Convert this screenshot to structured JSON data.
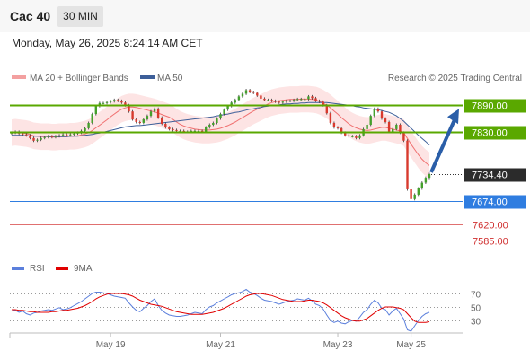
{
  "header": {
    "title": "Cac 40",
    "timeframe": "30 MIN",
    "datetime": "Monday, May 26, 2025 8:24:14 AM CET"
  },
  "legend": {
    "bb": "MA 20 + Bollinger Bands",
    "ma50": "MA 50",
    "credit": "Research © 2025 Trading Central",
    "rsi": "RSI",
    "ma9": "9MA"
  },
  "colors": {
    "green": "#5aa800",
    "blue": "#2f7de0",
    "red": "#e07070",
    "dark": "#2b2b2b",
    "candle_up": "#44a02c",
    "candle_down": "#d83a2e",
    "bb_fill": "#fde4e4",
    "ma20": "#f07070",
    "ma50": "#3d5f99",
    "rsi": "#5b7fdc",
    "ma9": "#e00000",
    "arrow": "#2a5ea8"
  },
  "chart_data": [
    {
      "type": "candlestick",
      "title": "",
      "ylim": [
        7560,
        7925
      ],
      "x_ticks": [
        "May 19",
        "May 21",
        "May 23",
        "May 25"
      ],
      "levels": [
        {
          "value": 7890.0,
          "label": "7890.00",
          "style": "resistance"
        },
        {
          "value": 7830.0,
          "label": "7830.00",
          "style": "resistance"
        },
        {
          "value": 7734.4,
          "label": "7734.40",
          "style": "last"
        },
        {
          "value": 7674.0,
          "label": "7674.00",
          "style": "pivot"
        },
        {
          "value": 7620.0,
          "label": "7620.00",
          "style": "support"
        },
        {
          "value": 7585.0,
          "label": "7585.00",
          "style": "support"
        }
      ],
      "close": [
        7828,
        7830,
        7826,
        7824,
        7822,
        7816,
        7810,
        7812,
        7816,
        7818,
        7820,
        7818,
        7820,
        7822,
        7824,
        7822,
        7824,
        7826,
        7828,
        7832,
        7838,
        7850,
        7870,
        7888,
        7895,
        7895,
        7897,
        7899,
        7902,
        7900,
        7896,
        7890,
        7876,
        7858,
        7852,
        7850,
        7858,
        7866,
        7876,
        7882,
        7862,
        7848,
        7840,
        7836,
        7834,
        7832,
        7832,
        7830,
        7830,
        7832,
        7832,
        7832,
        7830,
        7840,
        7846,
        7850,
        7860,
        7870,
        7880,
        7888,
        7896,
        7902,
        7910,
        7916,
        7924,
        7920,
        7918,
        7912,
        7905,
        7902,
        7902,
        7900,
        7898,
        7896,
        7898,
        7900,
        7900,
        7902,
        7904,
        7904,
        7904,
        7910,
        7906,
        7900,
        7898,
        7890,
        7872,
        7850,
        7840,
        7838,
        7828,
        7822,
        7820,
        7820,
        7816,
        7822,
        7836,
        7846,
        7866,
        7882,
        7876,
        7860,
        7852,
        7830,
        7836,
        7846,
        7828,
        7810,
        7700,
        7678,
        7688,
        7702,
        7715,
        7726,
        7734.4
      ],
      "ma20": [
        7828,
        7829,
        7828,
        7827,
        7826,
        7824,
        7821,
        7820,
        7819,
        7819,
        7819,
        7818,
        7818,
        7819,
        7819,
        7819,
        7820,
        7820,
        7821,
        7823,
        7825,
        7828,
        7833,
        7839,
        7845,
        7851,
        7857,
        7864,
        7870,
        7876,
        7881,
        7884,
        7886,
        7886,
        7885,
        7883,
        7881,
        7879,
        7877,
        7875,
        7872,
        7869,
        7866,
        7863,
        7858,
        7852,
        7847,
        7843,
        7840,
        7838,
        7836,
        7835,
        7834,
        7834,
        7834,
        7835,
        7836,
        7838,
        7841,
        7844,
        7848,
        7852,
        7857,
        7862,
        7867,
        7872,
        7877,
        7881,
        7885,
        7889,
        7893,
        7896,
        7898,
        7900,
        7901,
        7902,
        7903,
        7903,
        7903,
        7904,
        7904,
        7904,
        7903,
        7902,
        7899,
        7895,
        7890,
        7884,
        7877,
        7870,
        7862,
        7855,
        7848,
        7843,
        7839,
        7836,
        7834,
        7833,
        7834,
        7836,
        7838,
        7840,
        7840,
        7838,
        7836,
        7834,
        7832,
        7828,
        7815,
        7802,
        7790,
        7778,
        7768,
        7760,
        7754
      ],
      "ma50": [
        7822,
        7822,
        7822,
        7822,
        7821,
        7821,
        7820,
        7820,
        7820,
        7820,
        7819,
        7819,
        7819,
        7819,
        7819,
        7819,
        7820,
        7820,
        7820,
        7821,
        7822,
        7823,
        7824,
        7826,
        7827,
        7829,
        7831,
        7833,
        7835,
        7837,
        7839,
        7841,
        7842,
        7843,
        7844,
        7844,
        7845,
        7846,
        7847,
        7848,
        7849,
        7850,
        7851,
        7852,
        7853,
        7854,
        7855,
        7856,
        7857,
        7858,
        7859,
        7860,
        7861,
        7862,
        7863,
        7864,
        7866,
        7867,
        7869,
        7870,
        7872,
        7874,
        7875,
        7877,
        7879,
        7881,
        7882,
        7884,
        7885,
        7887,
        7888,
        7889,
        7890,
        7891,
        7892,
        7893,
        7893,
        7894,
        7894,
        7895,
        7895,
        7896,
        7896,
        7896,
        7896,
        7896,
        7896,
        7895,
        7894,
        7893,
        7892,
        7891,
        7890,
        7889,
        7887,
        7886,
        7884,
        7883,
        7882,
        7881,
        7880,
        7878,
        7876,
        7874,
        7870,
        7866,
        7860,
        7854,
        7846,
        7838,
        7830,
        7822,
        7815,
        7808,
        7800
      ],
      "bb_width": 30
    },
    {
      "type": "line",
      "title": "",
      "ylim": [
        10,
        90
      ],
      "y_ticks": [
        70,
        50,
        30
      ],
      "series": [
        {
          "name": "RSI",
          "values": [
            46,
            45,
            42,
            44,
            40,
            38,
            41,
            42,
            44,
            45,
            46,
            45,
            47,
            49,
            46,
            47,
            49,
            52,
            55,
            58,
            62,
            66,
            70,
            72,
            72,
            71,
            70,
            68,
            66,
            65,
            64,
            63,
            56,
            50,
            45,
            43,
            48,
            52,
            58,
            62,
            52,
            45,
            41,
            38,
            37,
            36,
            36,
            37,
            38,
            40,
            42,
            41,
            40,
            46,
            50,
            52,
            56,
            59,
            62,
            65,
            68,
            70,
            71,
            73,
            76,
            72,
            70,
            67,
            63,
            60,
            59,
            58,
            56,
            54,
            56,
            58,
            59,
            60,
            62,
            61,
            60,
            63,
            59,
            54,
            52,
            47,
            38,
            30,
            27,
            29,
            26,
            25,
            28,
            30,
            29,
            35,
            42,
            46,
            54,
            60,
            56,
            48,
            46,
            38,
            44,
            48,
            40,
            32,
            16,
            14,
            22,
            30,
            36,
            40,
            42
          ]
        },
        {
          "name": "9MA",
          "values": [
            46,
            46,
            45,
            45,
            44,
            43,
            43,
            42,
            42,
            42,
            42,
            43,
            43,
            44,
            45,
            45,
            46,
            47,
            48,
            50,
            52,
            55,
            58,
            62,
            65,
            67,
            69,
            70,
            70,
            70,
            70,
            69,
            68,
            66,
            63,
            60,
            58,
            56,
            54,
            53,
            52,
            51,
            49,
            47,
            45,
            43,
            42,
            41,
            40,
            39,
            39,
            39,
            39,
            40,
            41,
            42,
            44,
            46,
            48,
            51,
            54,
            57,
            60,
            63,
            66,
            68,
            69,
            70,
            70,
            69,
            68,
            67,
            65,
            63,
            61,
            60,
            59,
            58,
            58,
            58,
            59,
            60,
            60,
            59,
            58,
            56,
            53,
            49,
            45,
            41,
            37,
            34,
            32,
            30,
            29,
            29,
            31,
            33,
            37,
            41,
            45,
            48,
            50,
            50,
            50,
            49,
            48,
            46,
            40,
            34,
            29,
            27,
            27,
            27,
            28
          ]
        }
      ]
    }
  ]
}
